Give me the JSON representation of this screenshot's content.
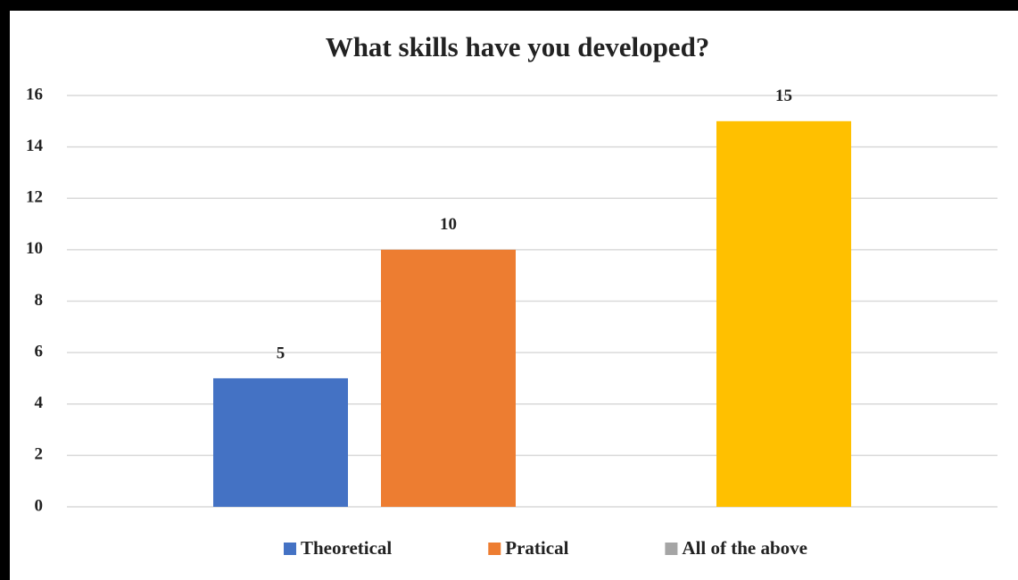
{
  "chart_data": {
    "type": "bar",
    "title": "What skills have you developed?",
    "categories": [
      null
    ],
    "series": [
      {
        "name": "Theoretical",
        "color": "#4472c4",
        "values": [
          5
        ]
      },
      {
        "name": "Pratical",
        "color": "#ed7d31",
        "values": [
          10
        ]
      },
      {
        "name": "All of the above",
        "color": "#a5a5a5",
        "values": [
          null
        ]
      },
      {
        "color": "#ffc000",
        "values": [
          15
        ]
      }
    ],
    "ylim": [
      0,
      16
    ],
    "yticks": [
      0,
      2,
      4,
      6,
      8,
      10,
      12,
      14,
      16
    ],
    "grid": true,
    "legend": "bottom"
  }
}
